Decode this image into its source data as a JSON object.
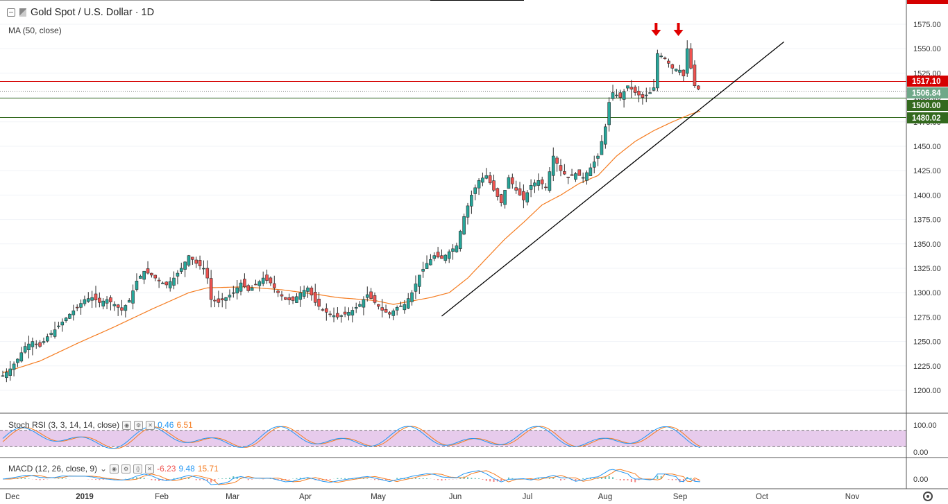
{
  "header": {
    "symbol_title": "Gold Spot / U.S. Dollar · 1D",
    "ma_legend": "MA (50, close)",
    "stoch_legend": "Stoch RSI (3, 3, 14, 14, close)",
    "stoch_k": "0.46",
    "stoch_d": "6.51",
    "macd_legend": "MACD (12, 26, close, 9)",
    "macd_hist": "-6.23",
    "macd_line": "9.48",
    "macd_signal": "15.71"
  },
  "colors": {
    "up": "#26a69a",
    "down": "#ef5350",
    "candle_outline": "#2b2b2b",
    "ma": "#f57c20",
    "trendline": "#000000",
    "resistance": "#d50000",
    "support": "#33691e",
    "current": "#6fa888",
    "stoch_k": "#2196f3",
    "stoch_d": "#f57c20",
    "stoch_band": "#e1bee7",
    "macd_line": "#2196f3",
    "macd_signal": "#f57c20",
    "arrows": "#e00000",
    "axis_text": "#333333"
  },
  "chart_data": {
    "type": "candlestick",
    "yaxis_ticks": [
      1200,
      1225,
      1250,
      1275,
      1300,
      1325,
      1350,
      1375,
      1400,
      1425,
      1450,
      1475,
      1500,
      1525,
      1550,
      1575
    ],
    "ylim": [
      1185,
      1600
    ],
    "price_labels": [
      {
        "value": "1517.10",
        "kind": "resistance"
      },
      {
        "value": "1506.84",
        "kind": "current"
      },
      {
        "value": "1500.00",
        "kind": "support"
      },
      {
        "value": "1480.02",
        "kind": "support"
      }
    ],
    "x_labels": [
      "Dec",
      "2019",
      "Feb",
      "Mar",
      "Apr",
      "May",
      "Jun",
      "Jul",
      "Aug",
      "Sep",
      "Oct",
      "Nov"
    ],
    "close_path": [
      [
        0,
        1215
      ],
      [
        4,
        1222
      ],
      [
        8,
        1232
      ],
      [
        12,
        1245
      ],
      [
        16,
        1250
      ],
      [
        20,
        1245
      ],
      [
        24,
        1255
      ],
      [
        28,
        1262
      ],
      [
        32,
        1270
      ],
      [
        36,
        1278
      ],
      [
        40,
        1285
      ],
      [
        44,
        1293
      ],
      [
        48,
        1295
      ],
      [
        52,
        1290
      ],
      [
        56,
        1293
      ],
      [
        60,
        1288
      ],
      [
        64,
        1282
      ],
      [
        68,
        1292
      ],
      [
        72,
        1312
      ],
      [
        76,
        1322
      ],
      [
        80,
        1318
      ],
      [
        84,
        1312
      ],
      [
        88,
        1308
      ],
      [
        92,
        1315
      ],
      [
        96,
        1325
      ],
      [
        100,
        1338
      ],
      [
        104,
        1330
      ],
      [
        108,
        1325
      ],
      [
        110,
        1315
      ],
      [
        112,
        1293
      ],
      [
        116,
        1290
      ],
      [
        120,
        1295
      ],
      [
        124,
        1300
      ],
      [
        128,
        1310
      ],
      [
        132,
        1302
      ],
      [
        136,
        1308
      ],
      [
        140,
        1315
      ],
      [
        144,
        1310
      ],
      [
        148,
        1300
      ],
      [
        152,
        1293
      ],
      [
        156,
        1292
      ],
      [
        160,
        1300
      ],
      [
        164,
        1305
      ],
      [
        168,
        1290
      ],
      [
        172,
        1282
      ],
      [
        176,
        1278
      ],
      [
        180,
        1275
      ],
      [
        184,
        1278
      ],
      [
        188,
        1282
      ],
      [
        192,
        1288
      ],
      [
        196,
        1298
      ],
      [
        200,
        1290
      ],
      [
        204,
        1282
      ],
      [
        208,
        1278
      ],
      [
        212,
        1285
      ],
      [
        216,
        1288
      ],
      [
        220,
        1300
      ],
      [
        224,
        1318
      ],
      [
        228,
        1330
      ],
      [
        232,
        1338
      ],
      [
        236,
        1335
      ],
      [
        240,
        1342
      ],
      [
        244,
        1348
      ],
      [
        248,
        1378
      ],
      [
        252,
        1400
      ],
      [
        256,
        1415
      ],
      [
        260,
        1420
      ],
      [
        264,
        1405
      ],
      [
        268,
        1392
      ],
      [
        272,
        1418
      ],
      [
        276,
        1405
      ],
      [
        280,
        1395
      ],
      [
        284,
        1410
      ],
      [
        288,
        1415
      ],
      [
        292,
        1408
      ],
      [
        296,
        1440
      ],
      [
        300,
        1425
      ],
      [
        304,
        1418
      ],
      [
        308,
        1422
      ],
      [
        312,
        1418
      ],
      [
        316,
        1428
      ],
      [
        320,
        1440
      ],
      [
        324,
        1470
      ],
      [
        326,
        1495
      ],
      [
        328,
        1505
      ],
      [
        332,
        1500
      ],
      [
        336,
        1512
      ],
      [
        340,
        1505
      ],
      [
        344,
        1500
      ],
      [
        348,
        1505
      ],
      [
        350,
        1510
      ],
      [
        352,
        1545
      ],
      [
        356,
        1540
      ],
      [
        360,
        1530
      ],
      [
        364,
        1528
      ],
      [
        366,
        1522
      ],
      [
        368,
        1550
      ],
      [
        370,
        1530
      ],
      [
        372,
        1512
      ],
      [
        375,
        1506.84
      ]
    ],
    "ma50_path": [
      [
        0,
        1218
      ],
      [
        20,
        1230
      ],
      [
        40,
        1248
      ],
      [
        60,
        1265
      ],
      [
        80,
        1283
      ],
      [
        100,
        1300
      ],
      [
        110,
        1305
      ],
      [
        130,
        1306
      ],
      [
        150,
        1303
      ],
      [
        170,
        1298
      ],
      [
        180,
        1295
      ],
      [
        200,
        1292
      ],
      [
        210,
        1288
      ],
      [
        230,
        1295
      ],
      [
        240,
        1300
      ],
      [
        250,
        1315
      ],
      [
        260,
        1335
      ],
      [
        270,
        1355
      ],
      [
        280,
        1372
      ],
      [
        290,
        1390
      ],
      [
        300,
        1400
      ],
      [
        310,
        1412
      ],
      [
        320,
        1420
      ],
      [
        330,
        1440
      ],
      [
        340,
        1455
      ],
      [
        350,
        1466
      ],
      [
        360,
        1475
      ],
      [
        370,
        1483
      ],
      [
        375,
        1486
      ]
    ],
    "trendline": [
      [
        236,
        1276
      ],
      [
        420,
        1557
      ]
    ],
    "arrow_marks": [
      352,
      364
    ],
    "stoch_rsi": {
      "ticks": [
        "100.00",
        "0.00"
      ],
      "ylim": [
        0,
        100
      ],
      "upper_band": 80,
      "lower_band": 20
    },
    "macd": {
      "ticks": [
        "0.00"
      ]
    }
  }
}
